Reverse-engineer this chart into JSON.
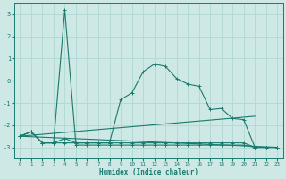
{
  "xlabel": "Humidex (Indice chaleur)",
  "background_color": "#cde8e5",
  "grid_color": "#b0d8d4",
  "line_color": "#1a7a6e",
  "xlim": [
    -0.5,
    23.5
  ],
  "ylim": [
    -3.5,
    3.5
  ],
  "yticks": [
    -3,
    -2,
    -1,
    0,
    1,
    2,
    3
  ],
  "xticks": [
    0,
    1,
    2,
    3,
    4,
    5,
    6,
    7,
    8,
    9,
    10,
    11,
    12,
    13,
    14,
    15,
    16,
    17,
    18,
    19,
    20,
    21,
    22,
    23
  ],
  "curve_spike": {
    "x": [
      0,
      1,
      2,
      3,
      4,
      5,
      6,
      7,
      8,
      9,
      10,
      11,
      12,
      13,
      14,
      15,
      16,
      17,
      18,
      19,
      20,
      21,
      22,
      23
    ],
    "y": [
      -2.5,
      -2.3,
      -2.8,
      -2.8,
      3.2,
      -2.9,
      -2.9,
      -2.9,
      -2.9,
      -2.9,
      -2.9,
      -2.9,
      -2.9,
      -2.9,
      -2.9,
      -2.9,
      -2.9,
      -2.9,
      -2.9,
      -2.9,
      -2.9,
      -3.0,
      -3.0,
      -3.0
    ]
  },
  "curve_bell": {
    "x": [
      0,
      1,
      2,
      3,
      4,
      5,
      6,
      7,
      8,
      9,
      10,
      11,
      12,
      13,
      14,
      15,
      16,
      17,
      18,
      19,
      20,
      21,
      22,
      23
    ],
    "y": [
      -2.5,
      -2.3,
      -2.8,
      -2.8,
      -2.6,
      -2.8,
      -2.8,
      -2.8,
      -2.8,
      -0.85,
      -0.55,
      0.4,
      0.75,
      0.65,
      0.1,
      -0.15,
      -0.25,
      -1.3,
      -1.25,
      -1.7,
      -1.75,
      -3.0,
      -3.0,
      -3.0
    ]
  },
  "curve_linear1": {
    "x": [
      0,
      21
    ],
    "y": [
      -2.5,
      -1.6
    ]
  },
  "curve_linear2": {
    "x": [
      0,
      23
    ],
    "y": [
      -2.5,
      -3.0
    ]
  },
  "curve_flat": {
    "x": [
      0,
      1,
      2,
      3,
      4,
      5,
      6,
      7,
      8,
      9,
      10,
      11,
      12,
      13,
      14,
      15,
      16,
      17,
      18,
      19,
      20,
      21,
      22,
      23
    ],
    "y": [
      -2.5,
      -2.3,
      -2.8,
      -2.8,
      -2.8,
      -2.8,
      -2.8,
      -2.8,
      -2.8,
      -2.8,
      -2.8,
      -2.8,
      -2.8,
      -2.8,
      -2.8,
      -2.8,
      -2.8,
      -2.8,
      -2.8,
      -2.8,
      -2.8,
      -3.0,
      -3.0,
      -3.0
    ]
  }
}
